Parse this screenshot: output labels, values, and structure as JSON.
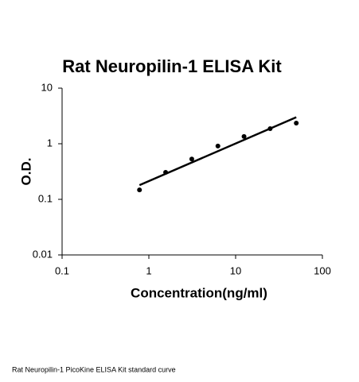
{
  "chart_data": {
    "type": "scatter",
    "title": "Rat Neuropilin-1 ELISA Kit",
    "xlabel": "Concentration(ng/ml)",
    "ylabel": "O.D.",
    "caption": "Rat Neuropilin-1 PicoKine ELISA Kit standard curve",
    "xlog": true,
    "ylog": true,
    "xlim": [
      0.1,
      100
    ],
    "ylim": [
      0.01,
      10
    ],
    "xticks": [
      0.1,
      1,
      10,
      100
    ],
    "yticks": [
      0.01,
      0.1,
      1,
      10
    ],
    "series": [
      {
        "style": "points",
        "color": "#000000",
        "x": [
          0.78,
          1.56,
          3.125,
          6.25,
          12.5,
          25,
          50
        ],
        "values": [
          0.148,
          0.306,
          0.53,
          0.91,
          1.35,
          1.87,
          2.35
        ]
      },
      {
        "style": "line",
        "color": "#000000",
        "x": [
          0.78,
          50
        ],
        "values": [
          0.18,
          3.0
        ]
      }
    ]
  }
}
